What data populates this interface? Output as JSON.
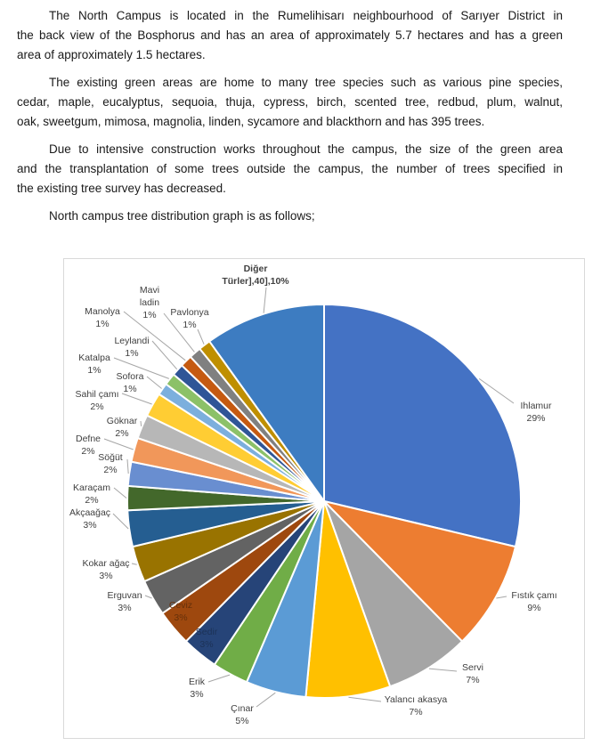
{
  "document": {
    "paragraphs": [
      {
        "lines": [
          "The North Campus is located in the Rumelihisarı neighbourhood of Sarıyer District in",
          "the back view of the Bosphorus and has an area of approximately 5.7 hectares and has a green",
          "area of approximately 1.5 hectares."
        ]
      },
      {
        "lines": [
          "The existing green areas are home to many tree species such as various pine species,",
          "cedar, maple, eucalyptus, sequoia, thuja, cypress, birch, scented tree, redbud, plum, walnut,",
          "oak, sweetgum, mimosa, magnolia, linden, sycamore and blackthorn and has 395 trees."
        ]
      },
      {
        "lines": [
          "Due to intensive construction works throughout the campus, the size of the green area",
          "and the transplantation of some trees outside the campus, the number of trees specified in",
          "the existing tree survey has decreased."
        ]
      },
      {
        "lines": [
          "North campus tree distribution graph is as follows;"
        ]
      }
    ]
  },
  "chart_data": {
    "type": "pie",
    "title": "",
    "legend": "none",
    "label_format": "category name + percentage, outside end with leader lines",
    "start_angle_deg": 0,
    "direction": "clockwise",
    "label_color": "#404040",
    "leader_line_color": "#A6A6A6",
    "border_color": "#D9D9D9",
    "slices": [
      {
        "name": "Ihlamur",
        "percent": 29,
        "percent_label": "29%",
        "color": "#4472C4",
        "label_lines": [
          "Ihlamur",
          "29%"
        ]
      },
      {
        "name": "Fıstık çamı",
        "percent": 9,
        "percent_label": "9%",
        "color": "#ED7D31",
        "label_lines": [
          "Fıstık çamı",
          "9%"
        ]
      },
      {
        "name": "Servi",
        "percent": 7,
        "percent_label": "7%",
        "color": "#A5A5A5",
        "label_lines": [
          "Servi",
          "7%"
        ]
      },
      {
        "name": "Yalancı akasya",
        "percent": 7,
        "percent_label": "7%",
        "color": "#FFC000",
        "label_lines": [
          "Yalancı akasya",
          "7%"
        ]
      },
      {
        "name": "Çınar",
        "percent": 5,
        "percent_label": "5%",
        "color": "#5B9BD5",
        "label_lines": [
          "Çınar",
          "5%"
        ]
      },
      {
        "name": "Erik",
        "percent": 3,
        "percent_label": "3%",
        "color": "#70AD47",
        "label_lines": [
          "Erik",
          "3%"
        ]
      },
      {
        "name": "Sedir",
        "percent": 3,
        "percent_label": "3%",
        "color": "#264478",
        "label_lines": [
          "Sedir",
          "3%"
        ],
        "label_inside": true,
        "label_color": "#1C3257"
      },
      {
        "name": "Ceviz",
        "percent": 3,
        "percent_label": "3%",
        "color": "#9E480E",
        "label_lines": [
          "Ceviz",
          "3%"
        ],
        "label_inside": true,
        "label_color": "#66300A"
      },
      {
        "name": "Erguvan",
        "percent": 3,
        "percent_label": "3%",
        "color": "#636363",
        "label_lines": [
          "Erguvan",
          "3%"
        ]
      },
      {
        "name": "Kokar ağaç",
        "percent": 3,
        "percent_label": "3%",
        "color": "#997300",
        "label_lines": [
          "Kokar ağaç",
          "3%"
        ]
      },
      {
        "name": "Akçaağaç",
        "percent": 3,
        "percent_label": "3%",
        "color": "#255E91",
        "label_lines": [
          "Akçaağaç",
          "3%"
        ]
      },
      {
        "name": "Karaçam",
        "percent": 2,
        "percent_label": "2%",
        "color": "#43682B",
        "label_lines": [
          "Karaçam",
          "2%"
        ]
      },
      {
        "name": "Söğüt",
        "percent": 2,
        "percent_label": "2%",
        "color": "#698ED0",
        "label_lines": [
          "Söğüt",
          "2%"
        ]
      },
      {
        "name": "Defne",
        "percent": 2,
        "percent_label": "2%",
        "color": "#F1975A",
        "label_lines": [
          "Defne",
          "2%"
        ]
      },
      {
        "name": "Göknar",
        "percent": 2,
        "percent_label": "2%",
        "color": "#B7B7B7",
        "label_lines": [
          "Göknar",
          "2%"
        ]
      },
      {
        "name": "Sahil çamı",
        "percent": 2,
        "percent_label": "2%",
        "color": "#FFCD33",
        "label_lines": [
          "Sahil çamı",
          "2%"
        ]
      },
      {
        "name": "Sofora",
        "percent": 1,
        "percent_label": "1%",
        "color": "#7CAFDD",
        "label_lines": [
          "Sofora",
          "1%"
        ]
      },
      {
        "name": "Katalpa",
        "percent": 1,
        "percent_label": "1%",
        "color": "#8CC168",
        "label_lines": [
          "Katalpa",
          "1%"
        ]
      },
      {
        "name": "Leylandi",
        "percent": 1,
        "percent_label": "1%",
        "color": "#2F5597",
        "label_lines": [
          "Leylandi",
          "1%"
        ]
      },
      {
        "name": "Manolya",
        "percent": 1,
        "percent_label": "1%",
        "color": "#C55A11",
        "label_lines": [
          "Manolya",
          "1%"
        ]
      },
      {
        "name": "Mavi ladin",
        "percent": 1,
        "percent_label": "1%",
        "color": "#808080",
        "label_lines": [
          "Mavi",
          "ladin",
          "1%"
        ]
      },
      {
        "name": "Pavlonya",
        "percent": 1,
        "percent_label": "1%",
        "color": "#BF8F00",
        "label_lines": [
          "Pavlonya",
          "1%"
        ]
      },
      {
        "name": "Diğer Türler],40]",
        "percent": 10,
        "percent_label": "10%",
        "color": "#3D7CC1",
        "label_lines": [
          "Diğer",
          "Türler],40],10%"
        ],
        "label_bold": true
      }
    ]
  }
}
